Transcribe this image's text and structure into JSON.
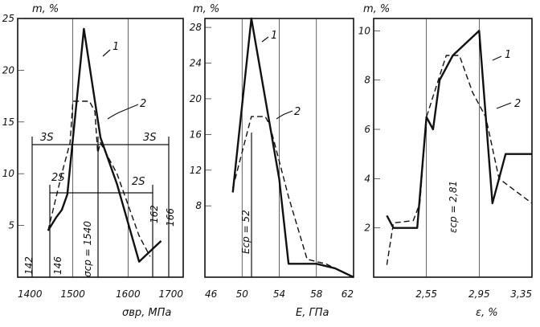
{
  "chart_data": [
    {
      "type": "line",
      "ylabel": "m, %",
      "xlabel": "σвр, МПа",
      "x_ticks": [
        "1400",
        "1500",
        "1600",
        "1700"
      ],
      "y_ticks": [
        "5",
        "10",
        "15",
        "20",
        "25"
      ],
      "xlim": [
        1400,
        1700
      ],
      "ylim": [
        0,
        25
      ],
      "series": [
        {
          "name": "1",
          "x": [
            1455,
            1470,
            1480,
            1490,
            1520,
            1550,
            1580,
            1620,
            1630,
            1660
          ],
          "y": [
            4.5,
            5.8,
            6.5,
            8,
            24,
            13.5,
            9,
            1.5,
            2,
            3.5
          ]
        },
        {
          "name": "2",
          "x": [
            1455,
            1480,
            1495,
            1500,
            1530,
            1540,
            1545,
            1550,
            1580,
            1620,
            1640
          ],
          "y": [
            4.5,
            10,
            13,
            17,
            17,
            16,
            12,
            13,
            10,
            4,
            2
          ]
        }
      ],
      "annotations": {
        "mean": "σср = 1540",
        "one_sigma": "2S",
        "one_sigma_right": "2S",
        "two_sigma": "3S",
        "two_sigma_right": "3S",
        "bounds": [
          "142",
          "146",
          "162",
          "166"
        ]
      }
    },
    {
      "type": "line",
      "ylabel": "m, %",
      "xlabel": "E, ГПа",
      "x_ticks": [
        "46",
        "50",
        "54",
        "58",
        "62"
      ],
      "y_ticks": [
        "8",
        "12",
        "16",
        "20",
        "24",
        "28"
      ],
      "xlim": [
        46,
        62
      ],
      "ylim": [
        0,
        29
      ],
      "series": [
        {
          "name": "1",
          "x": [
            49,
            51,
            54,
            55,
            58,
            60,
            62
          ],
          "y": [
            9.5,
            29,
            11,
            1.5,
            1.5,
            1,
            0
          ]
        },
        {
          "name": "2",
          "x": [
            49,
            51,
            52.5,
            53,
            55,
            57,
            59,
            62
          ],
          "y": [
            10,
            18,
            18,
            17,
            9,
            2,
            1.5,
            0
          ]
        }
      ],
      "annotations": {
        "mean": "Eср = 52"
      }
    },
    {
      "type": "line",
      "ylabel": "m, %",
      "xlabel": "ε, %",
      "x_ticks": [
        "2,55",
        "2,95",
        "3,35"
      ],
      "y_ticks": [
        "2",
        "4",
        "6",
        "8",
        "10"
      ],
      "xlim": [
        2.15,
        3.35
      ],
      "ylim": [
        0,
        10.5
      ],
      "series": [
        {
          "name": "1",
          "x": [
            2.25,
            2.3,
            2.4,
            2.48,
            2.55,
            2.6,
            2.65,
            2.75,
            2.95,
            3.05,
            3.15,
            3.25,
            3.35
          ],
          "y": [
            2.5,
            2,
            2,
            2,
            6.5,
            6,
            8,
            9,
            10,
            3,
            5,
            5,
            5
          ]
        },
        {
          "name": "2",
          "x": [
            2.25,
            2.3,
            2.45,
            2.5,
            2.55,
            2.7,
            2.8,
            2.9,
            3.0,
            3.1,
            3.35
          ],
          "y": [
            0.5,
            2.2,
            2.3,
            3,
            6.5,
            9,
            9,
            7.5,
            6.5,
            4,
            3
          ]
        }
      ],
      "annotations": {
        "mean": "εср = 2,81"
      }
    }
  ],
  "series_labels": [
    "1",
    "2"
  ]
}
